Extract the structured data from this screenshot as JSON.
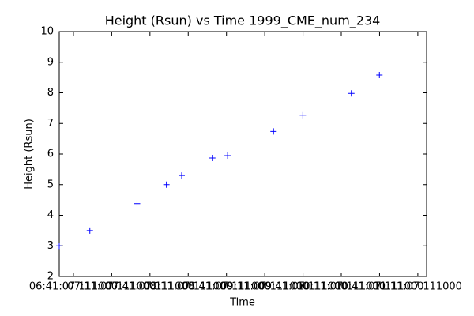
{
  "chart_data": {
    "type": "scatter",
    "title": "Height (Rsun) vs Time 1999_CME_num_234",
    "xlabel": "Time",
    "ylabel": "Height (Rsun)",
    "x": [
      "06:30",
      "06:54",
      "07:31",
      "07:54",
      "08:06",
      "08:30",
      "08:42",
      "09:18",
      "09:41",
      "10:19",
      "10:41"
    ],
    "series": [
      {
        "name": "Height",
        "color": "#0000ff",
        "marker": "+",
        "values": [
          3.0,
          3.5,
          4.38,
          5.0,
          5.3,
          5.87,
          5.95,
          6.74,
          7.27,
          7.98,
          8.58
        ]
      }
    ],
    "xlim": [
      "06:30",
      "11:18"
    ],
    "xticks": [
      {
        "value": "06:41:07",
        "label": "06:41:07.111000"
      },
      {
        "value": "07:11:07",
        "label": "07:11:07.111000"
      },
      {
        "value": "07:41:07",
        "label": "07:41:07.111000"
      },
      {
        "value": "08:11:07",
        "label": "08:11:07.111000"
      },
      {
        "value": "08:41:07",
        "label": "08:41:07.111000"
      },
      {
        "value": "09:11:07",
        "label": "09:11:07.111000"
      },
      {
        "value": "09:41:07",
        "label": "09:41:07.111000"
      },
      {
        "value": "10:11:07",
        "label": "10:11:07.111000"
      },
      {
        "value": "10:41:07",
        "label": "10:41:07.111000"
      },
      {
        "value": "11:11:07",
        "label": "11:11:07.111000"
      }
    ],
    "ylim": [
      2,
      10
    ],
    "yticks": [
      2,
      3,
      4,
      5,
      6,
      7,
      8,
      9,
      10
    ],
    "grid": false
  }
}
